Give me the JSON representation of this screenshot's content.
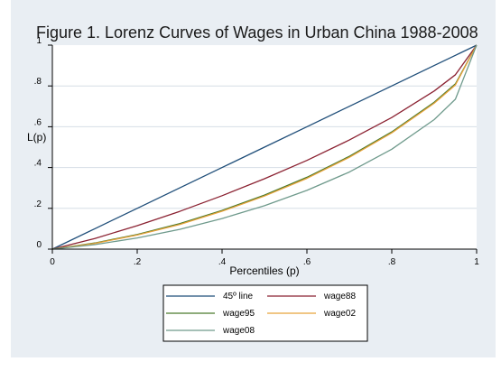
{
  "chart_data": {
    "type": "line",
    "title": "Figure 1. Lorenz Curves of Wages in Urban China 1988-2008",
    "xlabel": "Percentiles (p)",
    "ylabel": "L(p)",
    "xlim": [
      0,
      1
    ],
    "ylim": [
      0,
      1
    ],
    "xticks": [
      "0",
      ".2",
      ".4",
      ".6",
      ".8",
      "1"
    ],
    "yticks": [
      "0",
      ".2",
      ".4",
      ".6",
      ".8",
      "1"
    ],
    "grid": "horizontal",
    "legend_position": "bottom",
    "x": [
      0,
      0.1,
      0.2,
      0.3,
      0.4,
      0.5,
      0.6,
      0.7,
      0.8,
      0.9,
      0.95,
      1
    ],
    "series": [
      {
        "name": "45º line",
        "color": "#1f4e79",
        "values": [
          0,
          0.1,
          0.2,
          0.3,
          0.4,
          0.5,
          0.6,
          0.7,
          0.8,
          0.9,
          0.95,
          1
        ]
      },
      {
        "name": "wage88",
        "color": "#8b2232",
        "values": [
          0,
          0.052,
          0.115,
          0.185,
          0.262,
          0.345,
          0.435,
          0.535,
          0.645,
          0.775,
          0.855,
          1
        ]
      },
      {
        "name": "wage95",
        "color": "#4a7a2c",
        "values": [
          0,
          0.03,
          0.072,
          0.125,
          0.19,
          0.265,
          0.352,
          0.455,
          0.575,
          0.72,
          0.81,
          1
        ]
      },
      {
        "name": "wage02",
        "color": "#e8a33c",
        "values": [
          0,
          0.028,
          0.069,
          0.121,
          0.186,
          0.26,
          0.347,
          0.45,
          0.57,
          0.715,
          0.805,
          1
        ]
      },
      {
        "name": "wage08",
        "color": "#6f9a8c",
        "values": [
          0,
          0.022,
          0.055,
          0.097,
          0.15,
          0.213,
          0.288,
          0.378,
          0.49,
          0.635,
          0.735,
          1
        ]
      }
    ]
  }
}
